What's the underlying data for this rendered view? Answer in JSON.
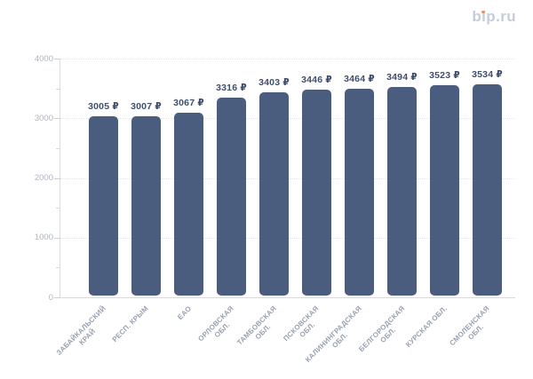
{
  "logo": {
    "text": "bip.ru",
    "dot_color": "#f28b66"
  },
  "chart_data": {
    "type": "bar",
    "title": "",
    "categories": [
      "ЗАБАЙКАЛЬСКИЙ\nКРАЙ",
      "РЕСП. КРЫМ",
      "ЕАО",
      "ОРЛОВСКАЯ\nОБЛ.",
      "ТАМБОВСКАЯ\nОБЛ.",
      "ПСКОВСКАЯ\nОБЛ.",
      "КАЛИНИНГРАДСКАЯ\nОБЛ.",
      "БЕЛГОРОДСКАЯ\nОБЛ.",
      "КУРСКАЯ ОБЛ.",
      "СМОЛЕНСКАЯ\nОБЛ."
    ],
    "values": [
      3005,
      3007,
      3067,
      3316,
      3403,
      3446,
      3464,
      3494,
      3523,
      3534
    ],
    "value_suffix": " ₽",
    "value_labels": [
      "3005 ₽",
      "3007 ₽",
      "3067 ₽",
      "3316 ₽",
      "3403 ₽",
      "3446 ₽",
      "3464 ₽",
      "3494 ₽",
      "3523 ₽",
      "3534 ₽"
    ],
    "xlabel": "",
    "ylabel": "",
    "ylim": [
      0,
      4000
    ],
    "yticks": [
      0,
      1000,
      2000,
      3000,
      4000
    ],
    "yticks_minor": [
      500,
      1500,
      2500,
      3500
    ],
    "grid": "horizontal dotted lines at major ticks",
    "legend": "none",
    "bar_color": "#4a5d7e",
    "value_label_color": "#3f4e6e",
    "tick_label_color": "#aeb4c2",
    "category_label_color": "#98a1b2",
    "axis_color": "#d7dae1"
  }
}
